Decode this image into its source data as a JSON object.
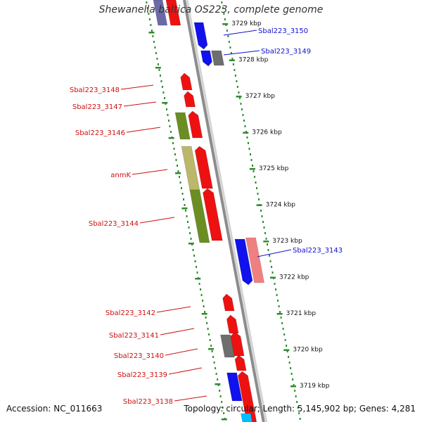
{
  "title": "Shewanella baltica OS223, complete genome",
  "accession": "Accession: NC_011663",
  "topology": "Topology: circular; Length: 5,145,902 bp; Genes: 4,281",
  "colors": {
    "backbone": "#8c8c8c",
    "ruler": "#2e8b2e",
    "forward_label": "#cc1111",
    "reverse_label": "#1111cc",
    "red": "#ee1111",
    "blue": "#1111ee",
    "gray": "#6e6e6e",
    "olive": "#6b8e23",
    "khaki": "#bdb76b",
    "pink": "#f08080",
    "cyan": "#00bfff",
    "slate": "#6a6aa8"
  },
  "kbp_ticks": [
    "3729 kbp",
    "3728 kbp",
    "3727 kbp",
    "3726 kbp",
    "3725 kbp",
    "3724 kbp",
    "3723 kbp",
    "3722 kbp",
    "3721 kbp",
    "3720 kbp",
    "3719 kbp"
  ],
  "gene_labels": [
    {
      "name": "Sbal223_3150",
      "strand": "reverse"
    },
    {
      "name": "Sbal223_3149",
      "strand": "reverse"
    },
    {
      "name": "Sbal223_3148",
      "strand": "forward"
    },
    {
      "name": "Sbal223_3147",
      "strand": "forward"
    },
    {
      "name": "Sbal223_3146",
      "strand": "forward"
    },
    {
      "name": "anmK",
      "strand": "forward"
    },
    {
      "name": "Sbal223_3144",
      "strand": "forward"
    },
    {
      "name": "Sbal223_3143",
      "strand": "reverse"
    },
    {
      "name": "Sbal223_3142",
      "strand": "forward"
    },
    {
      "name": "Sbal223_3141",
      "strand": "forward"
    },
    {
      "name": "Sbal223_3140",
      "strand": "forward"
    },
    {
      "name": "Sbal223_3139",
      "strand": "forward"
    },
    {
      "name": "Sbal223_3138",
      "strand": "forward"
    }
  ]
}
